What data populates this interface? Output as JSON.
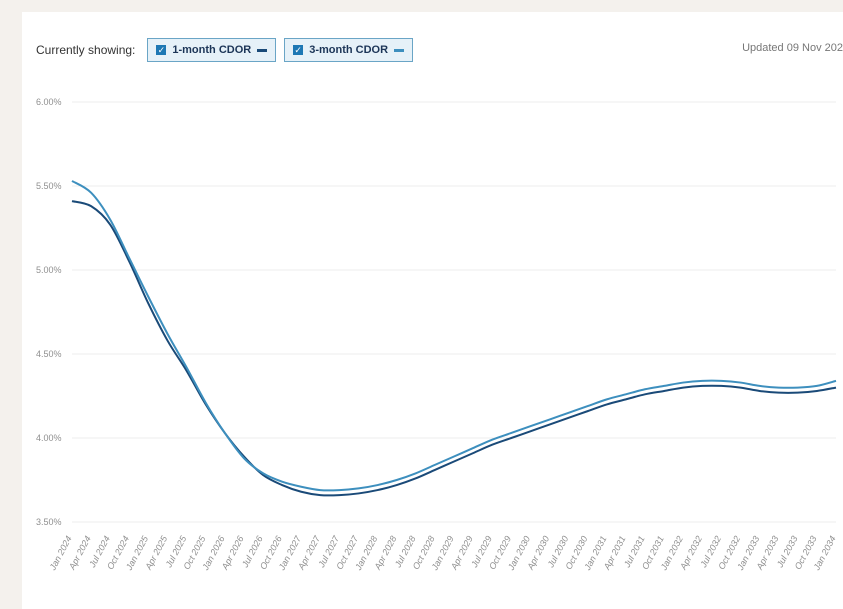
{
  "header": {
    "showing_label": "Currently showing:",
    "updated_label": "Updated 09 Nov 202"
  },
  "toggles": [
    {
      "label": "1-month CDOR",
      "checked": true
    },
    {
      "label": "3-month CDOR",
      "checked": true
    }
  ],
  "chart_data": {
    "type": "line",
    "title": "",
    "xlabel": "",
    "ylabel": "",
    "ylim": [
      3.5,
      6.0
    ],
    "grid": true,
    "yticks": [
      "3.50%",
      "4.00%",
      "4.50%",
      "5.00%",
      "5.50%",
      "6.00%"
    ],
    "ytick_values": [
      3.5,
      4.0,
      4.5,
      5.0,
      5.5,
      6.0
    ],
    "x": [
      "Jan 2024",
      "Apr 2024",
      "Jul 2024",
      "Oct 2024",
      "Jan 2025",
      "Apr 2025",
      "Jul 2025",
      "Oct 2025",
      "Jan 2026",
      "Apr 2026",
      "Jul 2026",
      "Oct 2026",
      "Jan 2027",
      "Apr 2027",
      "Jul 2027",
      "Oct 2027",
      "Jan 2028",
      "Apr 2028",
      "Jul 2028",
      "Oct 2028",
      "Jan 2029",
      "Apr 2029",
      "Jul 2029",
      "Oct 2029",
      "Jan 2030",
      "Apr 2030",
      "Jul 2030",
      "Oct 2030",
      "Jan 2031",
      "Apr 2031",
      "Jul 2031",
      "Oct 2031",
      "Jan 2032",
      "Apr 2032",
      "Jul 2032",
      "Oct 2032",
      "Jan 2033",
      "Apr 2033",
      "Jul 2033",
      "Oct 2033",
      "Jan 2034"
    ],
    "series": [
      {
        "name": "1-month CDOR",
        "color": "#1a4a78",
        "values": [
          5.41,
          5.38,
          5.27,
          5.05,
          4.8,
          4.58,
          4.4,
          4.2,
          4.03,
          3.89,
          3.78,
          3.72,
          3.68,
          3.66,
          3.66,
          3.67,
          3.69,
          3.72,
          3.76,
          3.81,
          3.86,
          3.91,
          3.96,
          4.0,
          4.04,
          4.08,
          4.12,
          4.16,
          4.2,
          4.23,
          4.26,
          4.28,
          4.3,
          4.31,
          4.31,
          4.3,
          4.28,
          4.27,
          4.27,
          4.28,
          4.3
        ]
      },
      {
        "name": "3-month CDOR",
        "color": "#3d8fbe",
        "values": [
          5.53,
          5.46,
          5.3,
          5.07,
          4.84,
          4.62,
          4.42,
          4.21,
          4.03,
          3.88,
          3.79,
          3.74,
          3.71,
          3.69,
          3.69,
          3.7,
          3.72,
          3.75,
          3.79,
          3.84,
          3.89,
          3.94,
          3.99,
          4.03,
          4.07,
          4.11,
          4.15,
          4.19,
          4.23,
          4.26,
          4.29,
          4.31,
          4.33,
          4.34,
          4.34,
          4.33,
          4.31,
          4.3,
          4.3,
          4.31,
          4.34
        ]
      }
    ]
  }
}
